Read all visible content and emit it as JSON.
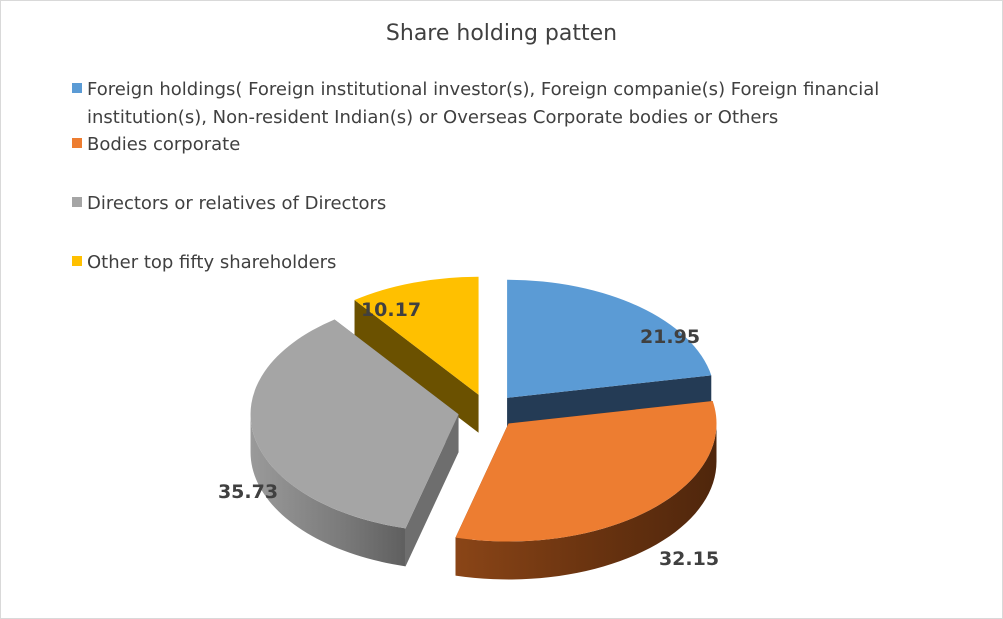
{
  "chart_data": {
    "type": "pie",
    "subtype": "exploded-3d",
    "title": "Share holding patten",
    "legend_position": "top-left",
    "slices": [
      {
        "label": "Foreign holdings( Foreign institutional investor(s), Foreign companie(s) Foreign financial institution(s), Non-resident Indian(s) or Overseas Corporate bodies or Others",
        "value": 21.95,
        "color": "#5b9bd5",
        "side_color": "#243b55"
      },
      {
        "label": "Bodies corporate",
        "value": 32.15,
        "color": "#ed7d31",
        "side_color": "#6b3410"
      },
      {
        "label": "Directors or relatives of Directors",
        "value": 35.73,
        "color": "#a5a5a5",
        "side_color": "#6e6e6e"
      },
      {
        "label": "Other top fifty shareholders",
        "value": 10.17,
        "color": "#ffc000",
        "side_color": "#6b5100"
      }
    ]
  }
}
